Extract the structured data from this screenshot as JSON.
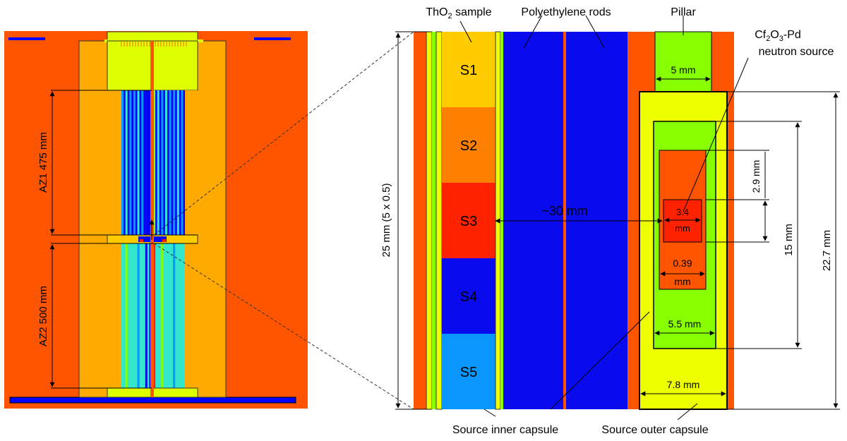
{
  "colors": {
    "orange_red": "#ff5500",
    "light_orange": "#ffaa00",
    "gold": "#ffcc00",
    "orange": "#ff8000",
    "red": "#ff2200",
    "blue": "#0000ff",
    "dark_blue": "#0a0aee",
    "sky_blue": "#0a96ff",
    "yellow_green": "#ddff00",
    "yellow": "#eeff00",
    "lime": "#88ff00",
    "cyan": "#33e6cc",
    "dim_line": "#000000"
  },
  "left_panel": {
    "az1_label": "AZ1 475 mm",
    "az2_label": "AZ2 500 mm"
  },
  "right_panel": {
    "thorium_label_pre": "ThO",
    "thorium_label_sub": "2",
    "thorium_label_post": " sample",
    "polyethylene_label": "Polyethylene rods",
    "pillar_label": "Pillar",
    "source_label_line1_pre": "Cf",
    "source_label_line1_sub1": "2",
    "source_label_line1_mid": "O",
    "source_label_line1_sub2": "3",
    "source_label_line1_post": "-Pd",
    "source_label_line2": "neutron source",
    "samples": [
      "S1",
      "S2",
      "S3",
      "S4",
      "S5"
    ],
    "dim_pillar_width": "5 mm",
    "dim_distance": "~30 mm",
    "dim_sample_height": "25 mm (5 x 0.5)",
    "dim_inner_gap_line1": "3.4",
    "dim_inner_gap_line2": "mm",
    "dim_source_offset_line1": "0.39",
    "dim_source_offset_line2": "mm",
    "dim_inner_capsule_width": "5.5 mm",
    "dim_outer_capsule_width": "7.8 mm",
    "dim_29": "2.9 mm",
    "dim_15": "15 mm",
    "dim_227": "22.7 mm",
    "inner_capsule_label": "Source inner capsule",
    "outer_capsule_label": "Source outer capsule"
  }
}
